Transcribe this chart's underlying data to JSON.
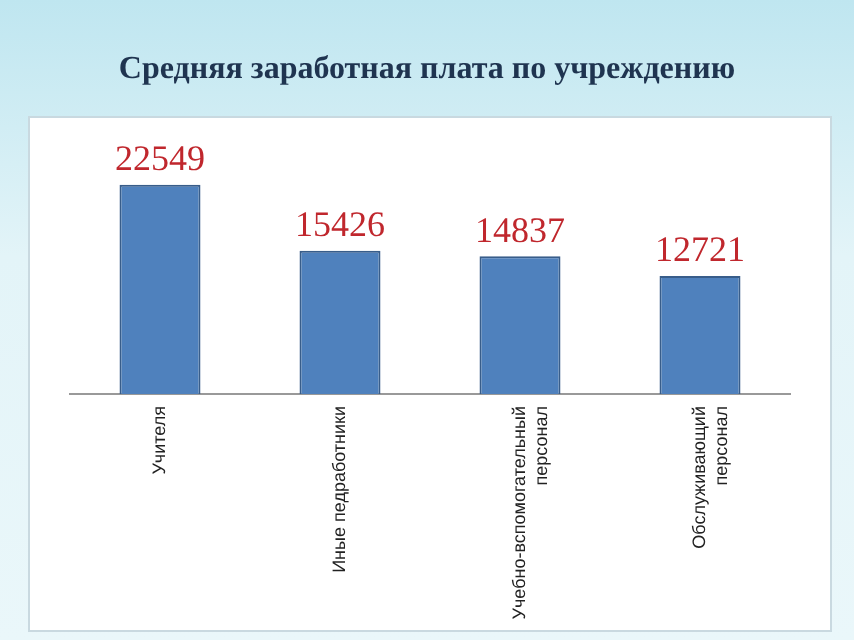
{
  "chart_data": {
    "type": "bar",
    "title": "Средняя заработная плата по учреждению",
    "categories": [
      "Учителя",
      "Иные педработники",
      "Учебно-вспомогательный персонал",
      "Обслуживающий персонал"
    ],
    "values": [
      22549,
      15426,
      14837,
      12721
    ],
    "color": "#4f81bd",
    "data_labels": true,
    "grid": false,
    "legend": false
  }
}
